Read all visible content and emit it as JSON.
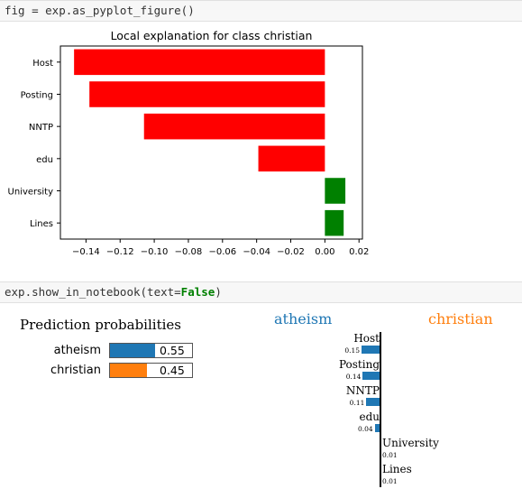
{
  "cells": {
    "cell1_code": "fig = exp.as_pyplot_figure()",
    "cell2_code_prefix": "exp.show_in_notebook(text=",
    "cell2_code_kw": "False",
    "cell2_code_suffix": ")"
  },
  "chart_data": {
    "type": "bar",
    "orientation": "horizontal",
    "title": "Local explanation for class christian",
    "categories": [
      "Host",
      "Posting",
      "NNTP",
      "edu",
      "University",
      "Lines"
    ],
    "values": [
      -0.147,
      -0.138,
      -0.106,
      -0.039,
      0.012,
      0.011
    ],
    "colors": [
      "#ff0000",
      "#ff0000",
      "#ff0000",
      "#ff0000",
      "#008000",
      "#008000"
    ],
    "xlim": [
      -0.155,
      0.022
    ],
    "xticks": [
      -0.14,
      -0.12,
      -0.1,
      -0.08,
      -0.06,
      -0.04,
      -0.02,
      0.0,
      0.02
    ],
    "xtick_labels": [
      "−0.14",
      "−0.12",
      "−0.10",
      "−0.08",
      "−0.06",
      "−0.04",
      "−0.02",
      "0.00",
      "0.02"
    ],
    "grid": false
  },
  "lime": {
    "prediction_title": "Prediction probabilities",
    "probabilities": [
      {
        "label": "atheism",
        "value": 0.55,
        "text": "0.55",
        "color": "#1f77b4"
      },
      {
        "label": "christian",
        "value": 0.45,
        "text": "0.45",
        "color": "#ff7f0e"
      }
    ],
    "class_left": "atheism",
    "class_right": "christian",
    "class_left_color": "#1f77b4",
    "class_right_color": "#ff7f0e",
    "features": [
      {
        "name": "Host",
        "value": 0.15,
        "text": "0.15",
        "side": "left"
      },
      {
        "name": "Posting",
        "value": 0.14,
        "text": "0.14",
        "side": "left"
      },
      {
        "name": "NNTP",
        "value": 0.11,
        "text": "0.11",
        "side": "left"
      },
      {
        "name": "edu",
        "value": 0.04,
        "text": "0.04",
        "side": "left"
      },
      {
        "name": "University",
        "value": 0.01,
        "text": "0.01",
        "side": "right"
      },
      {
        "name": "Lines",
        "value": 0.01,
        "text": "0.01",
        "side": "right"
      }
    ]
  }
}
